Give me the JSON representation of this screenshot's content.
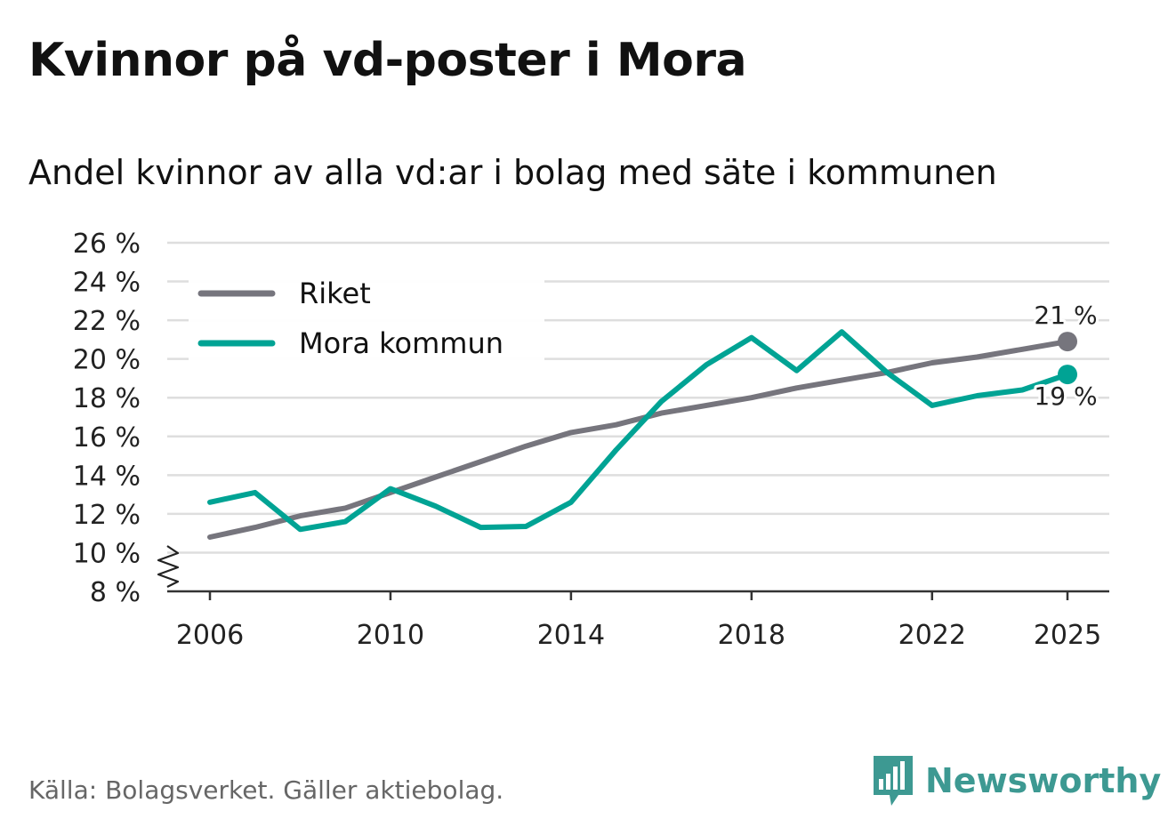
{
  "title": "Kvinnor på vd-poster i Mora",
  "subtitle": "Andel kvinnor av alla vd:ar i bolag med säte i kommunen",
  "source": "Källa: Bolagsverket. Gäller aktiebolag.",
  "brand": {
    "name": "Newsworthy",
    "icon": "newsworthy-logo-icon",
    "color": "#3d9992"
  },
  "colors": {
    "riket": "#76757d",
    "mora": "#00a394",
    "grid": "#dedede",
    "axis": "#333333"
  },
  "chart_data": {
    "type": "line",
    "title": "Kvinnor på vd-poster i Mora",
    "subtitle": "Andel kvinnor av alla vd:ar i bolag med säte i kommunen",
    "xlabel": "",
    "ylabel": "",
    "ylim": [
      8,
      26
    ],
    "y_axis_break": true,
    "y_ticks": [
      8,
      10,
      12,
      14,
      16,
      18,
      20,
      22,
      24,
      26
    ],
    "y_tick_labels": [
      "8 %",
      "10 %",
      "12 %",
      "14 %",
      "16 %",
      "18 %",
      "20 %",
      "22 %",
      "24 %",
      "26 %"
    ],
    "x_ticks": [
      2006,
      2010,
      2014,
      2018,
      2022,
      2025
    ],
    "x_tick_labels": [
      "2006",
      "2010",
      "2014",
      "2018",
      "2022",
      "2025"
    ],
    "grid": true,
    "legend_position": "top-left",
    "series": [
      {
        "name": "Riket",
        "x": [
          2006,
          2007,
          2008,
          2009,
          2010,
          2011,
          2012,
          2013,
          2014,
          2015,
          2016,
          2017,
          2018,
          2019,
          2020,
          2021,
          2022,
          2023,
          2024,
          2025
        ],
        "values": [
          10.8,
          11.3,
          11.9,
          12.3,
          13.1,
          13.9,
          14.7,
          15.5,
          16.2,
          16.6,
          17.2,
          17.6,
          18.0,
          18.5,
          18.9,
          19.3,
          19.8,
          20.1,
          20.5,
          20.9
        ],
        "end_label": "21 %"
      },
      {
        "name": "Mora kommun",
        "x": [
          2006,
          2007,
          2008,
          2009,
          2010,
          2011,
          2012,
          2013,
          2014,
          2015,
          2016,
          2017,
          2018,
          2019,
          2020,
          2021,
          2022,
          2023,
          2024,
          2025
        ],
        "values": [
          12.6,
          13.1,
          11.2,
          11.6,
          13.3,
          12.4,
          11.3,
          11.35,
          12.6,
          15.3,
          17.8,
          19.7,
          21.1,
          19.4,
          21.4,
          19.3,
          17.6,
          18.1,
          18.4,
          19.2
        ],
        "end_label": "19 %"
      }
    ]
  }
}
